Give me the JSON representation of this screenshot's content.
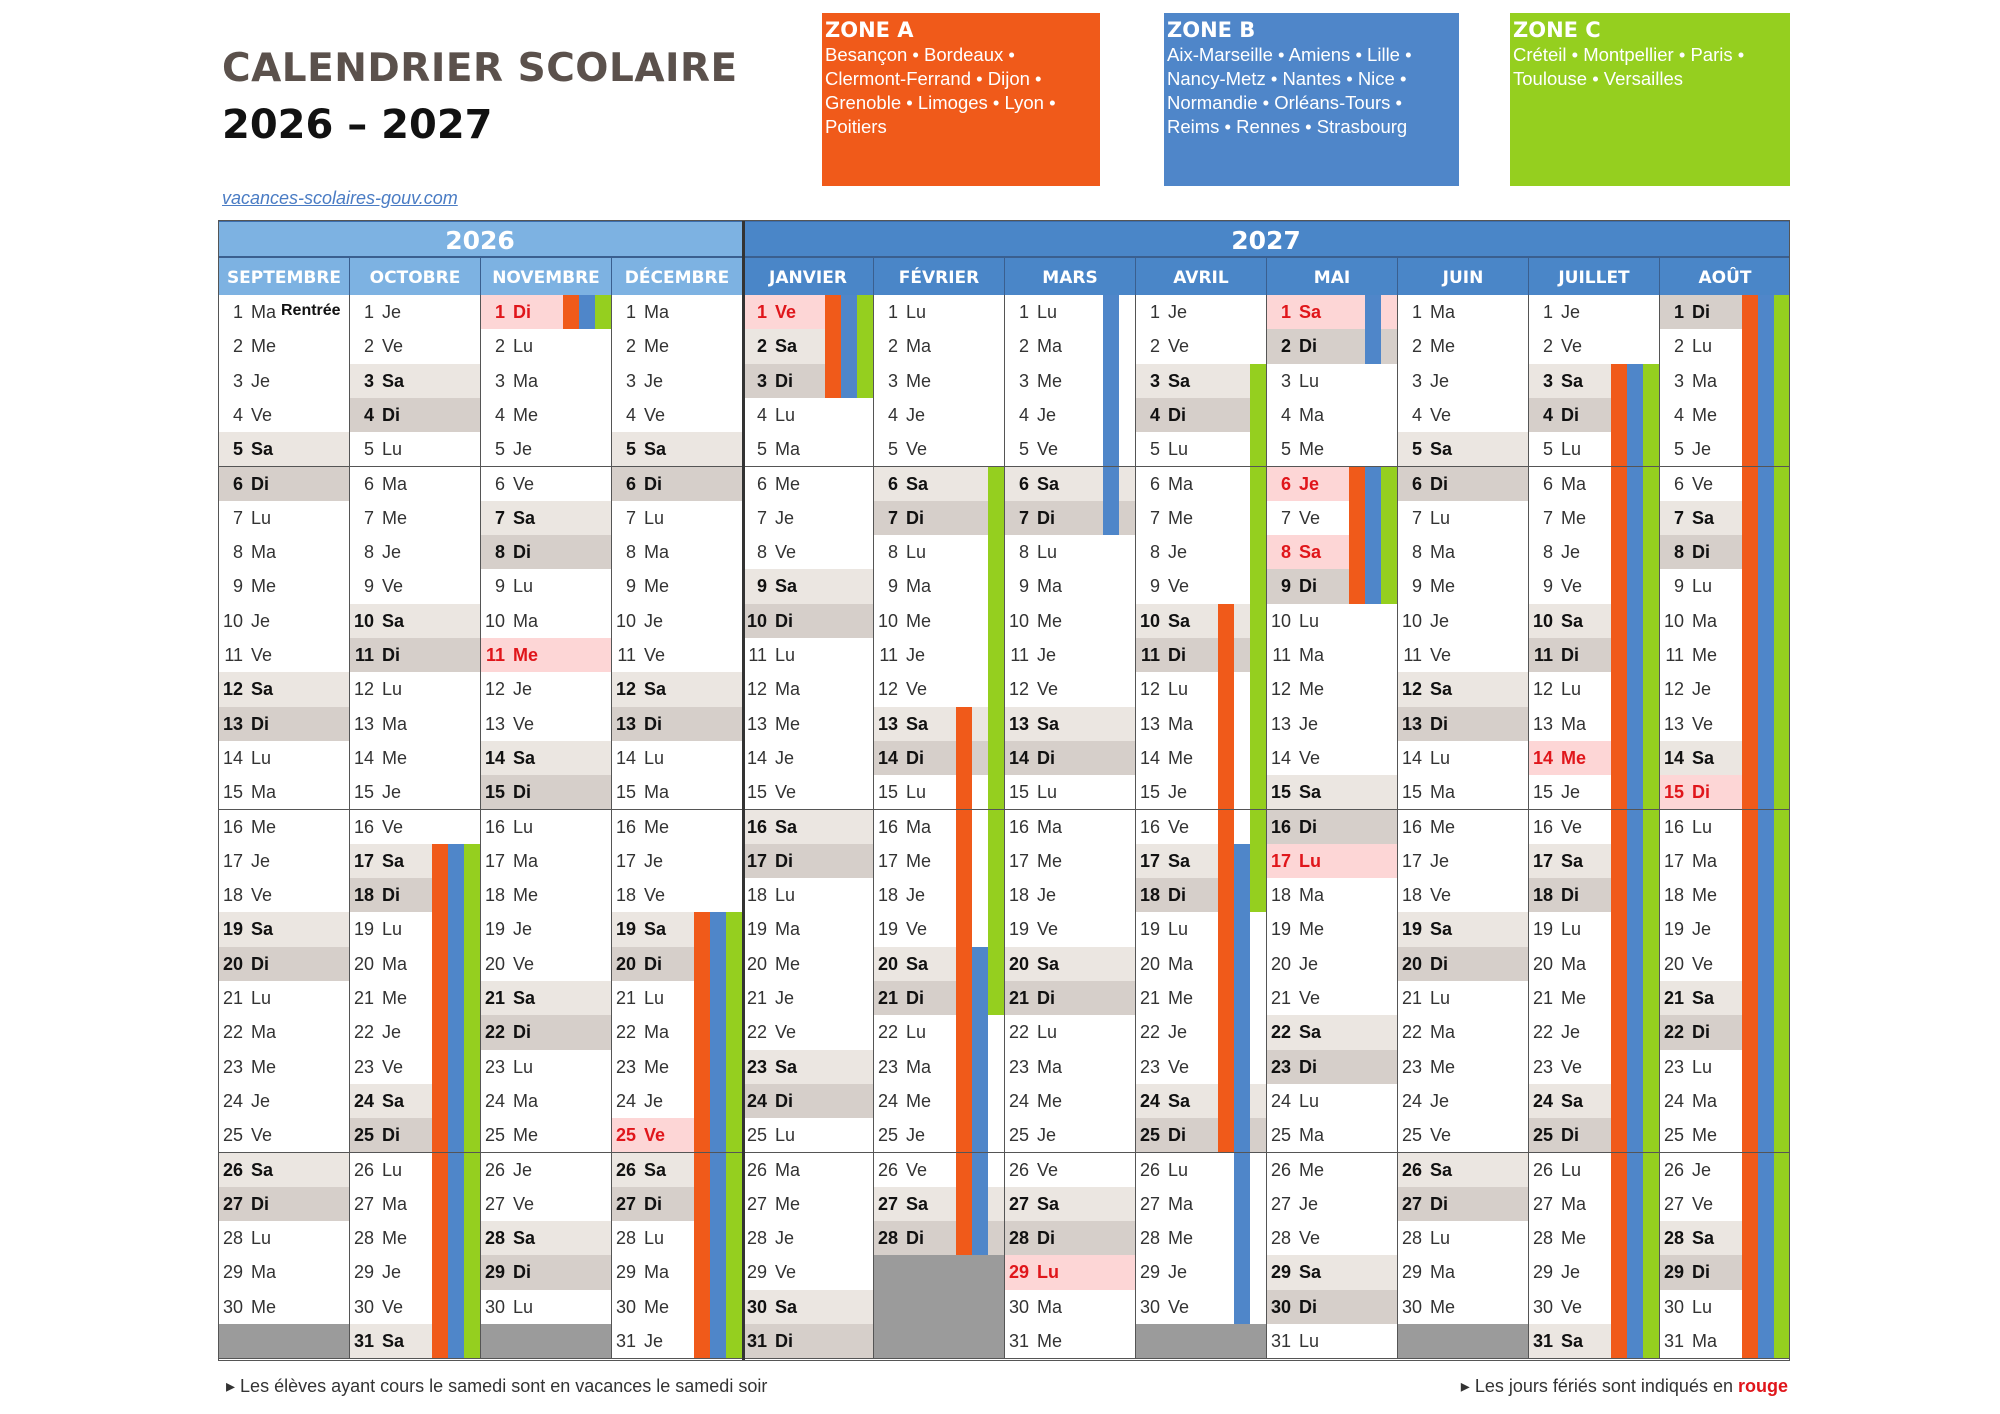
{
  "header": {
    "title": "CALENDRIER SCOLAIRE",
    "years": "2026 – 2027",
    "link": "vacances-scolaires-gouv.com"
  },
  "zones": [
    {
      "key": "A",
      "title": "ZONE A",
      "color": "#f05a1a",
      "lines": [
        "Besançon • Bordeaux •",
        "Clermont-Ferrand • Dijon •",
        "Grenoble • Limoges • Lyon •",
        "Poitiers"
      ]
    },
    {
      "key": "B",
      "title": "ZONE B",
      "color": "#4f86c9",
      "lines": [
        "Aix-Marseille • Amiens • Lille •",
        "Nancy-Metz • Nantes • Nice •",
        "Normandie • Orléans-Tours •",
        "Reims • Rennes • Strasbourg"
      ]
    },
    {
      "key": "C",
      "title": "ZONE C",
      "color": "#95cf1f",
      "lines": [
        "Créteil • Montpellier • Paris •",
        "Toulouse • Versailles"
      ]
    }
  ],
  "year_headers": [
    {
      "label": "2026",
      "color": "#7db2e2"
    },
    {
      "label": "2027",
      "color": "#4a86c8"
    }
  ],
  "weekdays": [
    "Di",
    "Lu",
    "Ma",
    "Me",
    "Je",
    "Ve",
    "Sa"
  ],
  "months": [
    {
      "label": "SEPTEMBRE",
      "year": 2026,
      "month": 9,
      "days": 30
    },
    {
      "label": "OCTOBRE",
      "year": 2026,
      "month": 10,
      "days": 31
    },
    {
      "label": "NOVEMBRE",
      "year": 2026,
      "month": 11,
      "days": 30
    },
    {
      "label": "DÉCEMBRE",
      "year": 2026,
      "month": 12,
      "days": 31
    },
    {
      "label": "JANVIER",
      "year": 2027,
      "month": 1,
      "days": 31
    },
    {
      "label": "FÉVRIER",
      "year": 2027,
      "month": 2,
      "days": 28
    },
    {
      "label": "MARS",
      "year": 2027,
      "month": 3,
      "days": 31
    },
    {
      "label": "AVRIL",
      "year": 2027,
      "month": 4,
      "days": 30
    },
    {
      "label": "MAI",
      "year": 2027,
      "month": 5,
      "days": 31
    },
    {
      "label": "JUIN",
      "year": 2027,
      "month": 6,
      "days": 30
    },
    {
      "label": "JUILLET",
      "year": 2027,
      "month": 7,
      "days": 31
    },
    {
      "label": "AOÛT",
      "year": 2027,
      "month": 8,
      "days": 31
    }
  ],
  "annotations": [
    {
      "date": "2026-09-01",
      "text": "Rentrée"
    }
  ],
  "holidays": [
    "2026-11-01",
    "2026-11-11",
    "2026-12-25",
    "2027-01-01",
    "2027-03-29",
    "2027-05-01",
    "2027-05-06",
    "2027-05-08",
    "2027-05-17",
    "2027-07-14",
    "2027-08-15"
  ],
  "vacations": [
    {
      "zones": [
        "A",
        "B",
        "C"
      ],
      "start": "2026-10-17",
      "end": "2026-11-01"
    },
    {
      "zones": [
        "A",
        "B",
        "C"
      ],
      "start": "2026-12-19",
      "end": "2027-01-03"
    },
    {
      "zones": [
        "A"
      ],
      "start": "2027-02-13",
      "end": "2027-02-28"
    },
    {
      "zones": [
        "B"
      ],
      "start": "2027-02-20",
      "end": "2027-03-07"
    },
    {
      "zones": [
        "C"
      ],
      "start": "2027-02-06",
      "end": "2027-02-21"
    },
    {
      "zones": [
        "A"
      ],
      "start": "2027-04-10",
      "end": "2027-04-25"
    },
    {
      "zones": [
        "B"
      ],
      "start": "2027-04-17",
      "end": "2027-05-02"
    },
    {
      "zones": [
        "C"
      ],
      "start": "2027-04-03",
      "end": "2027-04-18"
    },
    {
      "zones": [
        "A",
        "B",
        "C"
      ],
      "start": "2027-05-06",
      "end": "2027-05-09"
    },
    {
      "zones": [
        "A",
        "B",
        "C"
      ],
      "start": "2027-07-03",
      "end": "2027-08-31"
    }
  ],
  "footer": {
    "left": "Les élèves ayant cours le samedi sont en vacances le samedi soir",
    "right_prefix": "Les jours fériés sont indiqués en ",
    "right_highlight": "rouge"
  }
}
